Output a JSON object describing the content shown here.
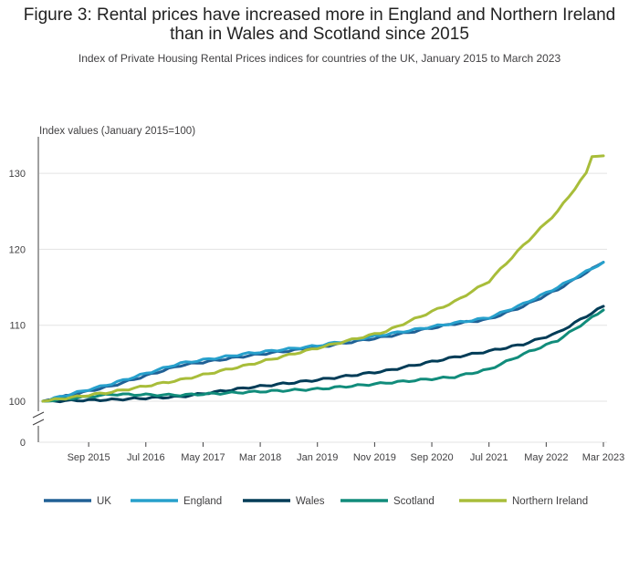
{
  "title": "Figure 3: Rental prices have increased more in England and Northern Ireland than in Wales and Scotland since 2015",
  "subtitle": "Index of Private Housing Rental Prices indices for countries of the UK, January 2015 to March 2023",
  "chart_data": {
    "type": "line",
    "ylabel": "Index values (January 2015=100)",
    "xlabel": "",
    "x_start": "2015-01",
    "x_end": "2023-03",
    "x_tick_labels": [
      "Sep 2015",
      "Jul 2016",
      "May 2017",
      "Mar 2018",
      "Jan 2019",
      "Nov 2019",
      "Sep 2020",
      "Jul 2021",
      "May 2022",
      "Mar 2023"
    ],
    "x_tick_dates": [
      "2015-09",
      "2016-07",
      "2017-05",
      "2018-03",
      "2019-01",
      "2019-11",
      "2020-09",
      "2021-07",
      "2022-05",
      "2023-03"
    ],
    "y_ticks": [
      100,
      110,
      120,
      130
    ],
    "y_zero_label": "0",
    "axis_break": true,
    "ylim": [
      100,
      135
    ],
    "grid": true,
    "legend_position": "bottom",
    "series": [
      {
        "name": "UK",
        "color": "#206095",
        "anchors": [
          [
            "2015-01",
            100
          ],
          [
            "2016-01",
            102
          ],
          [
            "2017-01",
            104.7
          ],
          [
            "2018-01",
            106
          ],
          [
            "2019-01",
            107.1
          ],
          [
            "2020-01",
            108.5
          ],
          [
            "2021-01",
            110.2
          ],
          [
            "2021-07",
            110.8
          ],
          [
            "2022-01",
            112.5
          ],
          [
            "2022-07",
            114.7
          ],
          [
            "2023-03",
            118.3
          ]
        ]
      },
      {
        "name": "England",
        "color": "#27A0CC",
        "anchors": [
          [
            "2015-01",
            100
          ],
          [
            "2016-01",
            102.3
          ],
          [
            "2017-01",
            105
          ],
          [
            "2018-01",
            106.3
          ],
          [
            "2019-01",
            107.3
          ],
          [
            "2020-01",
            108.8
          ],
          [
            "2021-01",
            110.3
          ],
          [
            "2021-07",
            111
          ],
          [
            "2022-01",
            112.8
          ],
          [
            "2022-07",
            115
          ],
          [
            "2023-03",
            118.3
          ]
        ]
      },
      {
        "name": "Wales",
        "color": "#003C57",
        "anchors": [
          [
            "2015-01",
            100
          ],
          [
            "2016-01",
            100.2
          ],
          [
            "2017-01",
            100.6
          ],
          [
            "2018-01",
            101.8
          ],
          [
            "2019-01",
            102.8
          ],
          [
            "2020-01",
            104
          ],
          [
            "2021-01",
            105.8
          ],
          [
            "2021-07",
            106.6
          ],
          [
            "2022-01",
            107.5
          ],
          [
            "2022-07",
            109
          ],
          [
            "2023-03",
            112.5
          ]
        ]
      },
      {
        "name": "Scotland",
        "color": "#118C7B",
        "anchors": [
          [
            "2015-01",
            100
          ],
          [
            "2016-01",
            100.9
          ],
          [
            "2017-01",
            100.8
          ],
          [
            "2018-01",
            101.2
          ],
          [
            "2019-01",
            101.6
          ],
          [
            "2020-01",
            102.4
          ],
          [
            "2021-01",
            103.2
          ],
          [
            "2021-07",
            104.2
          ],
          [
            "2022-01",
            106.2
          ],
          [
            "2022-07",
            108
          ],
          [
            "2023-03",
            112
          ]
        ]
      },
      {
        "name": "Northern Ireland",
        "color": "#A8BD3A",
        "anchors": [
          [
            "2015-01",
            100
          ],
          [
            "2016-01",
            101.2
          ],
          [
            "2017-01",
            102.8
          ],
          [
            "2018-01",
            104.8
          ],
          [
            "2019-01",
            107
          ],
          [
            "2020-01",
            109.2
          ],
          [
            "2021-01",
            113.1
          ],
          [
            "2021-07",
            115.8
          ],
          [
            "2022-01",
            120.5
          ],
          [
            "2022-07",
            125
          ],
          [
            "2022-12",
            130
          ],
          [
            "2023-01",
            132.3
          ],
          [
            "2023-03",
            132.3
          ]
        ]
      }
    ]
  }
}
